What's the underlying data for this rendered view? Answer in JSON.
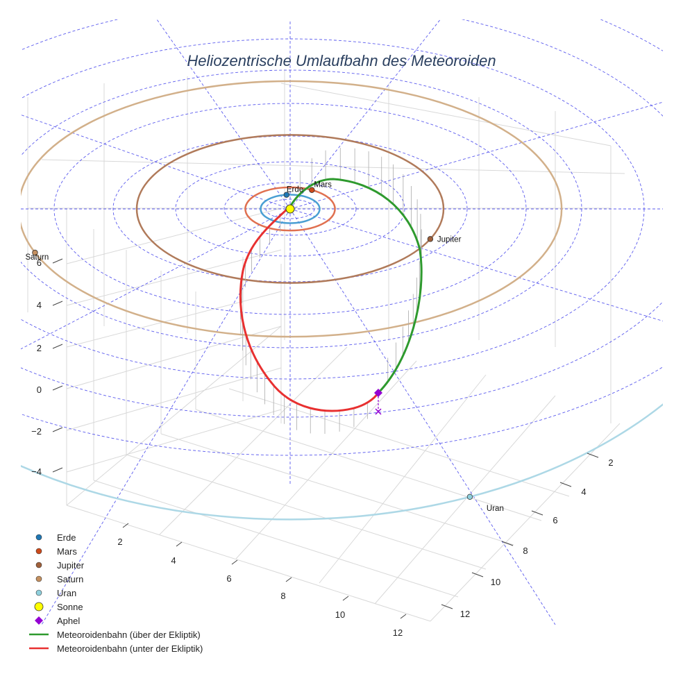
{
  "chart_data": {
    "type": "scatter3d",
    "title": "Heliozentrische Umlaufbahn des Meteoroiden",
    "z_ticks": [
      "6",
      "4",
      "2",
      "0",
      "−2",
      "−4"
    ],
    "x_ticks": [
      "2",
      "4",
      "6",
      "8",
      "10",
      "12"
    ],
    "y_ticks": [
      "2",
      "4",
      "6",
      "8",
      "10",
      "12"
    ],
    "planets": [
      {
        "name": "Erde",
        "color": "#1f77b4",
        "orbit_color": "#4a9fd3",
        "radius": 1.0,
        "angle_deg": 97
      },
      {
        "name": "Mars",
        "color": "#cc4a1a",
        "orbit_color": "#e07050",
        "radius": 1.52,
        "angle_deg": 61
      },
      {
        "name": "Jupiter",
        "color": "#a0603a",
        "orbit_color": "#b07a5a",
        "radius": 5.2,
        "angle_deg": -24
      },
      {
        "name": "Saturn",
        "color": "#c49060",
        "orbit_color": "#d2b08a",
        "radius": 9.54,
        "angle_deg": 200
      },
      {
        "name": "Uran",
        "color": "#8fd0dd",
        "orbit_color": "#add8e6",
        "radius": 19.2,
        "angle_deg": -68
      }
    ],
    "sun": {
      "name": "Sonne",
      "color": "#ffff00"
    },
    "aphel": {
      "name": "Aphel",
      "color": "#9400d3"
    },
    "legend": [
      {
        "label": "Erde",
        "kind": "dot",
        "color": "#1f77b4"
      },
      {
        "label": "Mars",
        "kind": "dot",
        "color": "#cc4a1a"
      },
      {
        "label": "Jupiter",
        "kind": "dot",
        "color": "#a0603a"
      },
      {
        "label": "Saturn",
        "kind": "dot",
        "color": "#c49060"
      },
      {
        "label": "Uran",
        "kind": "dot",
        "color": "#8fd0dd"
      },
      {
        "label": "Sonne",
        "kind": "sun",
        "color": "#ffff00"
      },
      {
        "label": "Aphel",
        "kind": "diamond",
        "color": "#9400d3"
      },
      {
        "label": "Meteoroidenbahn (über der Ekliptik)",
        "kind": "line",
        "color": "#2e9a2e"
      },
      {
        "label": "Meteoroidenbahn (unter der Ekliptik)",
        "kind": "line",
        "color": "#e83030"
      }
    ],
    "series": [
      {
        "name": "Meteoroidenbahn (über der Ekliptik)",
        "color": "#2e9a2e"
      },
      {
        "name": "Meteoroidenbahn (unter der Ekliptik)",
        "color": "#e83030"
      }
    ]
  }
}
